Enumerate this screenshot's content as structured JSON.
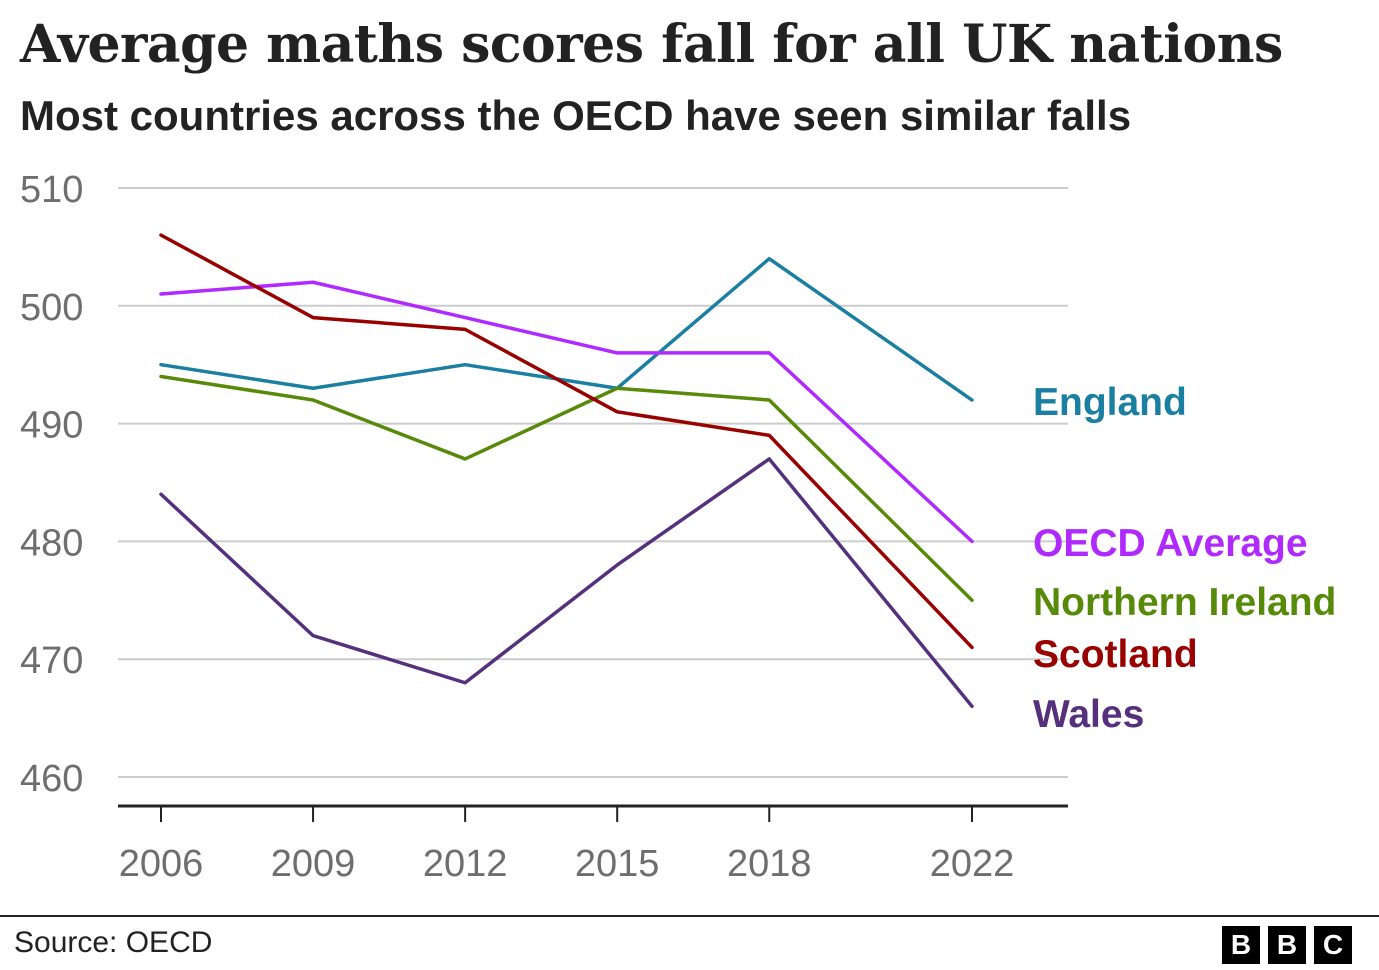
{
  "header": {
    "title": "Average maths scores fall for all UK nations",
    "subtitle": "Most countries across the OECD have seen similar falls"
  },
  "chart_data": {
    "type": "line",
    "title": "Average maths scores fall for all UK nations",
    "subtitle": "Most countries across the OECD have seen similar falls",
    "xlabel": "",
    "ylabel": "",
    "x": [
      2006,
      2009,
      2012,
      2015,
      2018,
      2022
    ],
    "x_tick_labels": [
      "2006",
      "2009",
      "2012",
      "2015",
      "2018",
      "2022"
    ],
    "ylim": [
      460,
      510
    ],
    "y_ticks": [
      460,
      470,
      480,
      490,
      500,
      510
    ],
    "y_tick_labels": [
      "460",
      "470",
      "480",
      "490",
      "500",
      "510"
    ],
    "grid": true,
    "legend": "direct labels at right end of lines",
    "series": [
      {
        "name": "England",
        "color": "#1a7fa0",
        "values": [
          495,
          493,
          495,
          493,
          504,
          492
        ]
      },
      {
        "name": "OECD Average",
        "color": "#b02aff",
        "values": [
          501,
          502,
          499,
          496,
          496,
          480
        ]
      },
      {
        "name": "Northern Ireland",
        "color": "#588a0a",
        "values": [
          494,
          492,
          487,
          493,
          492,
          475
        ]
      },
      {
        "name": "Scotland",
        "color": "#990000",
        "values": [
          506,
          499,
          498,
          491,
          489,
          471
        ]
      },
      {
        "name": "Wales",
        "color": "#54307d",
        "values": [
          484,
          472,
          468,
          478,
          487,
          466
        ]
      }
    ]
  },
  "footer": {
    "source": "Source: OECD",
    "logo_letters": [
      "B",
      "B",
      "C"
    ]
  }
}
